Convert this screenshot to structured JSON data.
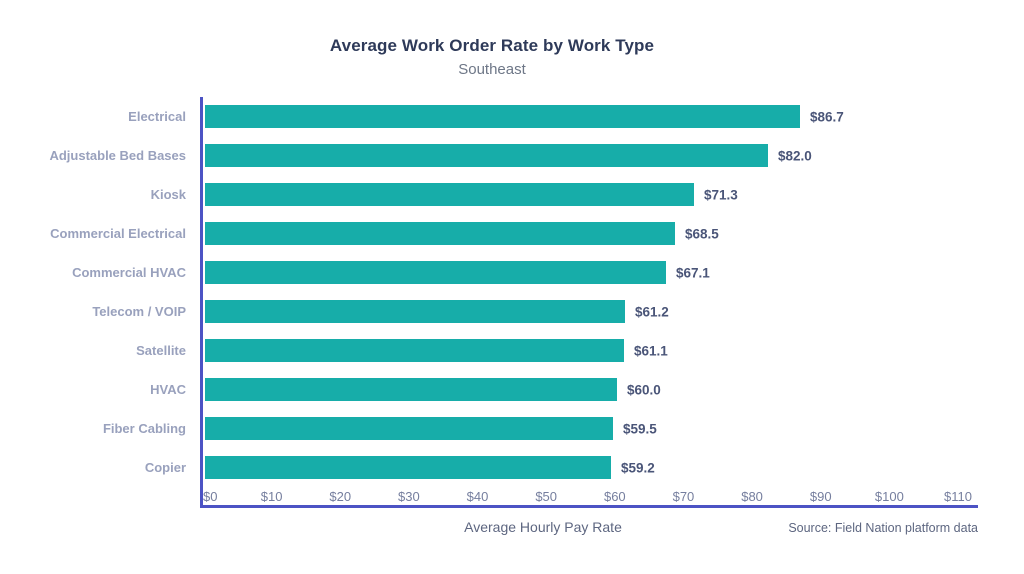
{
  "header": {
    "title": "Average Work Order Rate by Work Type",
    "subtitle": "Southeast"
  },
  "chart_data": {
    "type": "bar",
    "orientation": "horizontal",
    "title": "Average Work Order Rate by Work Type",
    "subtitle": "Southeast",
    "categories": [
      "Electrical",
      "Adjustable Bed Bases",
      "Kiosk",
      "Commercial Electrical",
      "Commercial HVAC",
      "Telecom / VOIP",
      "Satellite",
      "HVAC",
      "Fiber Cabling",
      "Copier"
    ],
    "values": [
      86.7,
      82.0,
      71.3,
      68.5,
      67.1,
      61.2,
      61.1,
      60.0,
      59.5,
      59.2
    ],
    "value_labels": [
      "$86.7",
      "$82.0",
      "$71.3",
      "$68.5",
      "$67.1",
      "$61.2",
      "$61.1",
      "$60.0",
      "$59.5",
      "$59.2"
    ],
    "xlabel": "Average Hourly Pay Rate",
    "ylabel": "",
    "xlim": [
      0,
      113
    ],
    "xtick_values": [
      0,
      10,
      20,
      30,
      40,
      50,
      60,
      70,
      80,
      90,
      100,
      110
    ],
    "xtick_labels": [
      "$0",
      "$10",
      "$20",
      "$30",
      "$40",
      "$50",
      "$60",
      "$70",
      "$80",
      "$90",
      "$100",
      "$110"
    ],
    "grid": false,
    "legend": false,
    "bar_color": "#17ada9",
    "axis_color": "#4c53c4"
  },
  "footer": {
    "xlabel": "Average Hourly Pay Rate",
    "source": "Source: Field Nation platform data"
  }
}
